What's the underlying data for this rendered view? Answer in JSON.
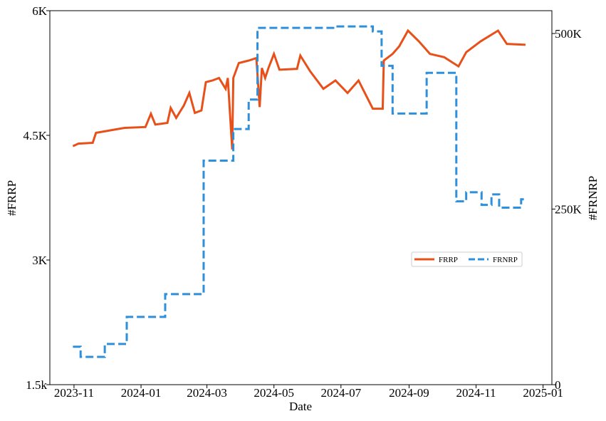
{
  "chart_data": {
    "type": "line",
    "x_label": "Date",
    "y_label": "#FRRP",
    "y2_label": "#FRNRP",
    "xlim": [
      "2023-10-10",
      "2025-01-09"
    ],
    "xticks": [
      {
        "value": "2023-11-01",
        "label": "2023-11"
      },
      {
        "value": "2024-01-01",
        "label": "2024-01"
      },
      {
        "value": "2024-03-01",
        "label": "2024-03"
      },
      {
        "value": "2024-05-01",
        "label": "2024-05"
      },
      {
        "value": "2024-07-01",
        "label": "2024-07"
      },
      {
        "value": "2024-09-01",
        "label": "2024-09"
      },
      {
        "value": "2024-11-01",
        "label": "2024-11"
      },
      {
        "value": "2025-01-01",
        "label": "2025-01"
      }
    ],
    "ylim": [
      1500,
      6000
    ],
    "yticks": [
      {
        "value": 1500,
        "label": "1.5k"
      },
      {
        "value": 3000,
        "label": "3K"
      },
      {
        "value": 4500,
        "label": "4.5K"
      },
      {
        "value": 6000,
        "label": "6K"
      }
    ],
    "y2lim": [
      0,
      532500
    ],
    "y2ticks": [
      0,
      {
        "value": 250000,
        "label": "250K"
      },
      {
        "value": 500000,
        "label": "500K"
      }
    ],
    "legend": "center right",
    "series": [
      {
        "name": "FRRP",
        "color": "#e8501a",
        "dash": "solid",
        "step": false,
        "axis": "y",
        "x": [
          "2023-10-31",
          "2023-11-05",
          "2023-11-18",
          "2023-11-21",
          "2023-12-04",
          "2023-12-17",
          "2024-01-05",
          "2024-01-10",
          "2024-01-14",
          "2024-01-25",
          "2024-01-28",
          "2024-02-02",
          "2024-02-09",
          "2024-02-14",
          "2024-02-19",
          "2024-02-25",
          "2024-02-29",
          "2024-03-06",
          "2024-03-12",
          "2024-03-18",
          "2024-03-20",
          "2024-03-24",
          "2024-03-25",
          "2024-03-30",
          "2024-04-08",
          "2024-04-15",
          "2024-04-18",
          "2024-04-20",
          "2024-04-23",
          "2024-04-26",
          "2024-05-01",
          "2024-05-06",
          "2024-05-22",
          "2024-05-25",
          "2024-06-03",
          "2024-06-15",
          "2024-06-26",
          "2024-07-07",
          "2024-07-17",
          "2024-07-30",
          "2024-08-08",
          "2024-08-09",
          "2024-08-17",
          "2024-08-23",
          "2024-08-31",
          "2024-09-10",
          "2024-09-20",
          "2024-10-03",
          "2024-10-16",
          "2024-10-23",
          "2024-11-05",
          "2024-11-21",
          "2024-11-29",
          "2024-12-16"
        ],
        "values": [
          4370,
          4400,
          4410,
          4530,
          4560,
          4590,
          4600,
          4760,
          4630,
          4650,
          4830,
          4710,
          4860,
          5010,
          4770,
          4800,
          5140,
          5160,
          5190,
          5060,
          5190,
          4330,
          5190,
          5370,
          5400,
          5430,
          4840,
          5310,
          5190,
          5310,
          5480,
          5290,
          5300,
          5460,
          5270,
          5060,
          5160,
          5010,
          5160,
          4820,
          4820,
          5400,
          5480,
          5570,
          5760,
          5630,
          5480,
          5440,
          5330,
          5500,
          5630,
          5760,
          5600,
          5590
        ]
      },
      {
        "name": "FRNRP",
        "color": "#2e8fdb",
        "dash": "dashed",
        "step": true,
        "axis": "y2",
        "x": [
          "2023-10-31",
          "2023-11-07",
          "2023-11-29",
          "2023-12-19",
          "2024-01-23",
          "2024-02-27",
          "2024-03-25",
          "2024-04-08",
          "2024-04-16",
          "2024-06-24",
          "2024-07-30",
          "2024-08-07",
          "2024-08-17",
          "2024-09-17",
          "2024-10-14",
          "2024-10-23",
          "2024-11-06",
          "2024-11-15",
          "2024-11-22",
          "2024-12-12",
          "2024-12-15"
        ],
        "values": [
          54000,
          39600,
          58000,
          96500,
          129000,
          319000,
          364000,
          406000,
          508000,
          510000,
          503000,
          454000,
          386000,
          444000,
          261000,
          274000,
          256000,
          271000,
          252000,
          264000,
          264000
        ]
      }
    ]
  }
}
